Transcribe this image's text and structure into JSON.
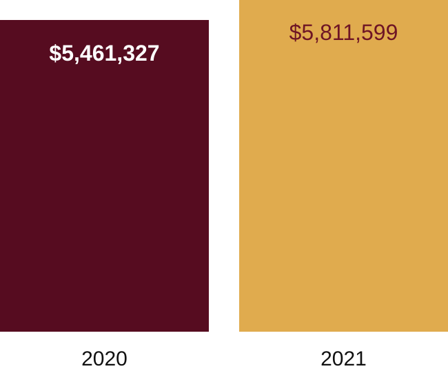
{
  "chart_data": {
    "type": "bar",
    "categories": [
      "2020",
      "2021"
    ],
    "values": [
      5461327,
      5811599
    ],
    "value_labels": [
      "$5,461,327",
      "$5,811,599"
    ],
    "title": "",
    "xlabel": "",
    "ylabel": "",
    "ylim": [
      0,
      5811599
    ],
    "grid": false,
    "bar_colors": [
      "#560c20",
      "#e0ab4e"
    ],
    "label_colors": [
      "#ffffff",
      "#6e1525"
    ]
  }
}
